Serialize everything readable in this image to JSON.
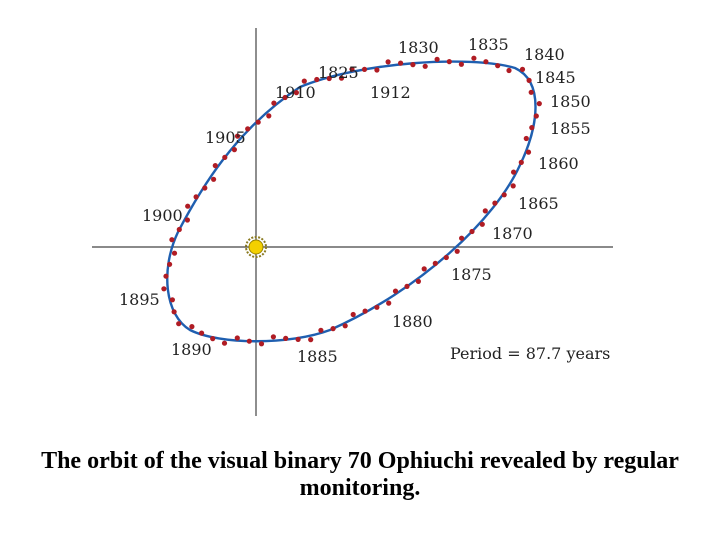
{
  "figure": {
    "period_label": "Period = 87.7 years",
    "caption": "The orbit of the visual binary 70 Ophiuchi revealed by regular monitoring.",
    "colors": {
      "orbit": "#1f5fb0",
      "observation_dot": "#b01c24",
      "axis": "#444444",
      "star": "#f4d000"
    },
    "year_labels": [
      "1830",
      "1835",
      "1840",
      "1845",
      "1850",
      "1855",
      "1860",
      "1865",
      "1870",
      "1875",
      "1880",
      "1885",
      "1890",
      "1895",
      "1900",
      "1905",
      "1910",
      "1825",
      "1912"
    ]
  }
}
